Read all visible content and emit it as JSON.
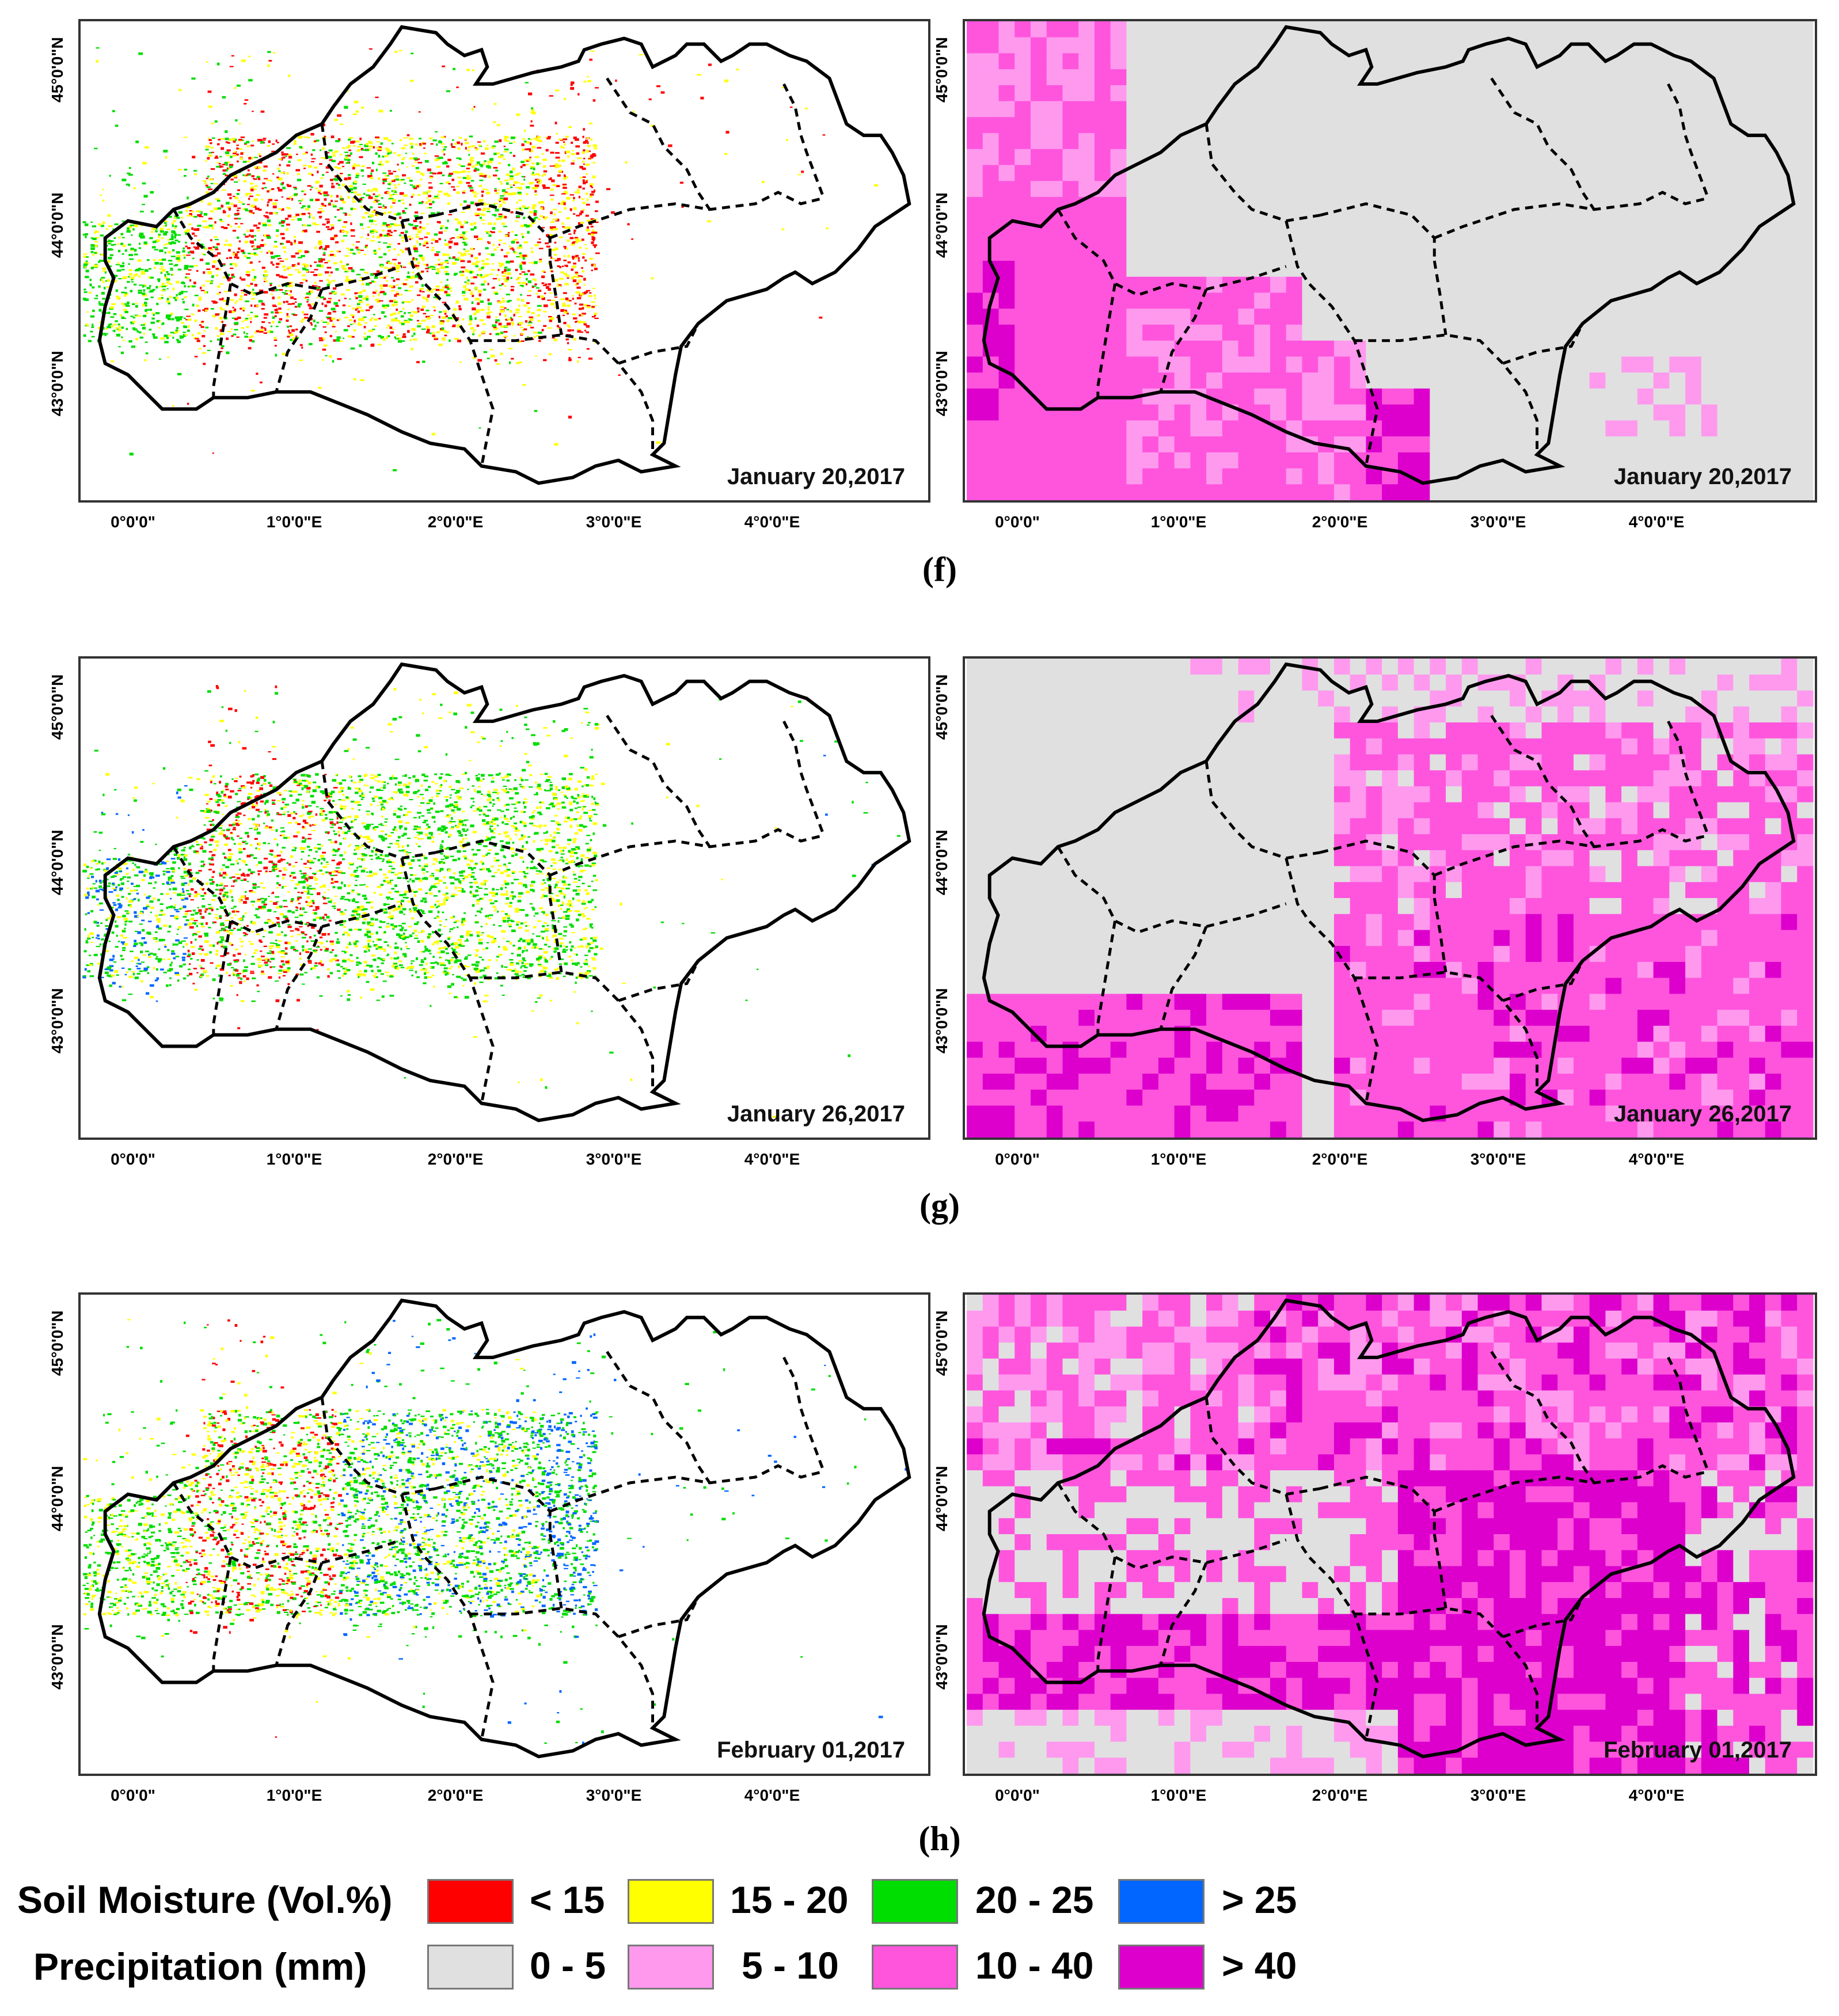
{
  "axes": {
    "latitude_labels": [
      "45°0'0\"N",
      "44°0'0\"N",
      "43°0'0\"N"
    ],
    "longitude_labels": [
      "0°0'0\"",
      "1°0'0\"E",
      "2°0'0\"E",
      "3°0'0\"E",
      "4°0'0\"E"
    ]
  },
  "rows": [
    {
      "letter": "(f)",
      "date": "January 20,2017",
      "soil_pattern": "dry-west",
      "precip_pattern": "west-heavy"
    },
    {
      "letter": "(g)",
      "date": "January 26,2017",
      "soil_pattern": "moist-west",
      "precip_pattern": "east-moderate"
    },
    {
      "letter": "(h)",
      "date": "February 01,2017",
      "precip_date": "February 01,2017",
      "soil_pattern": "wet-west",
      "precip_pattern": "east-heavy"
    }
  ],
  "panels": {
    "f_soil_date": "January 20,2017",
    "f_precip_date": "January 20,2017",
    "g_soil_date": "January 26,2017",
    "g_precip_date": "January 26,2017",
    "h_soil_date": "February 01,2017",
    "h_precip_date": "February 01,2017"
  },
  "letters": {
    "f": "(f)",
    "g": "(g)",
    "h": "(h)"
  },
  "legend": {
    "soil_title": "Soil Moisture (Vol.%)",
    "precip_title": "Precipitation (mm)",
    "soil_classes": [
      {
        "label": "< 15",
        "color": "#ff0000"
      },
      {
        "label": "15 - 20",
        "color": "#ffff00"
      },
      {
        "label": "20 - 25",
        "color": "#00dd00"
      },
      {
        "label": "> 25",
        "color": "#0066ff"
      }
    ],
    "precip_classes": [
      {
        "label": "0 - 5",
        "color": "#e0e0e0"
      },
      {
        "label": "5 - 10",
        "color": "#ff99ee"
      },
      {
        "label": "10 - 40",
        "color": "#ff55dd"
      },
      {
        "label": "> 40",
        "color": "#dd00cc"
      }
    ]
  }
}
